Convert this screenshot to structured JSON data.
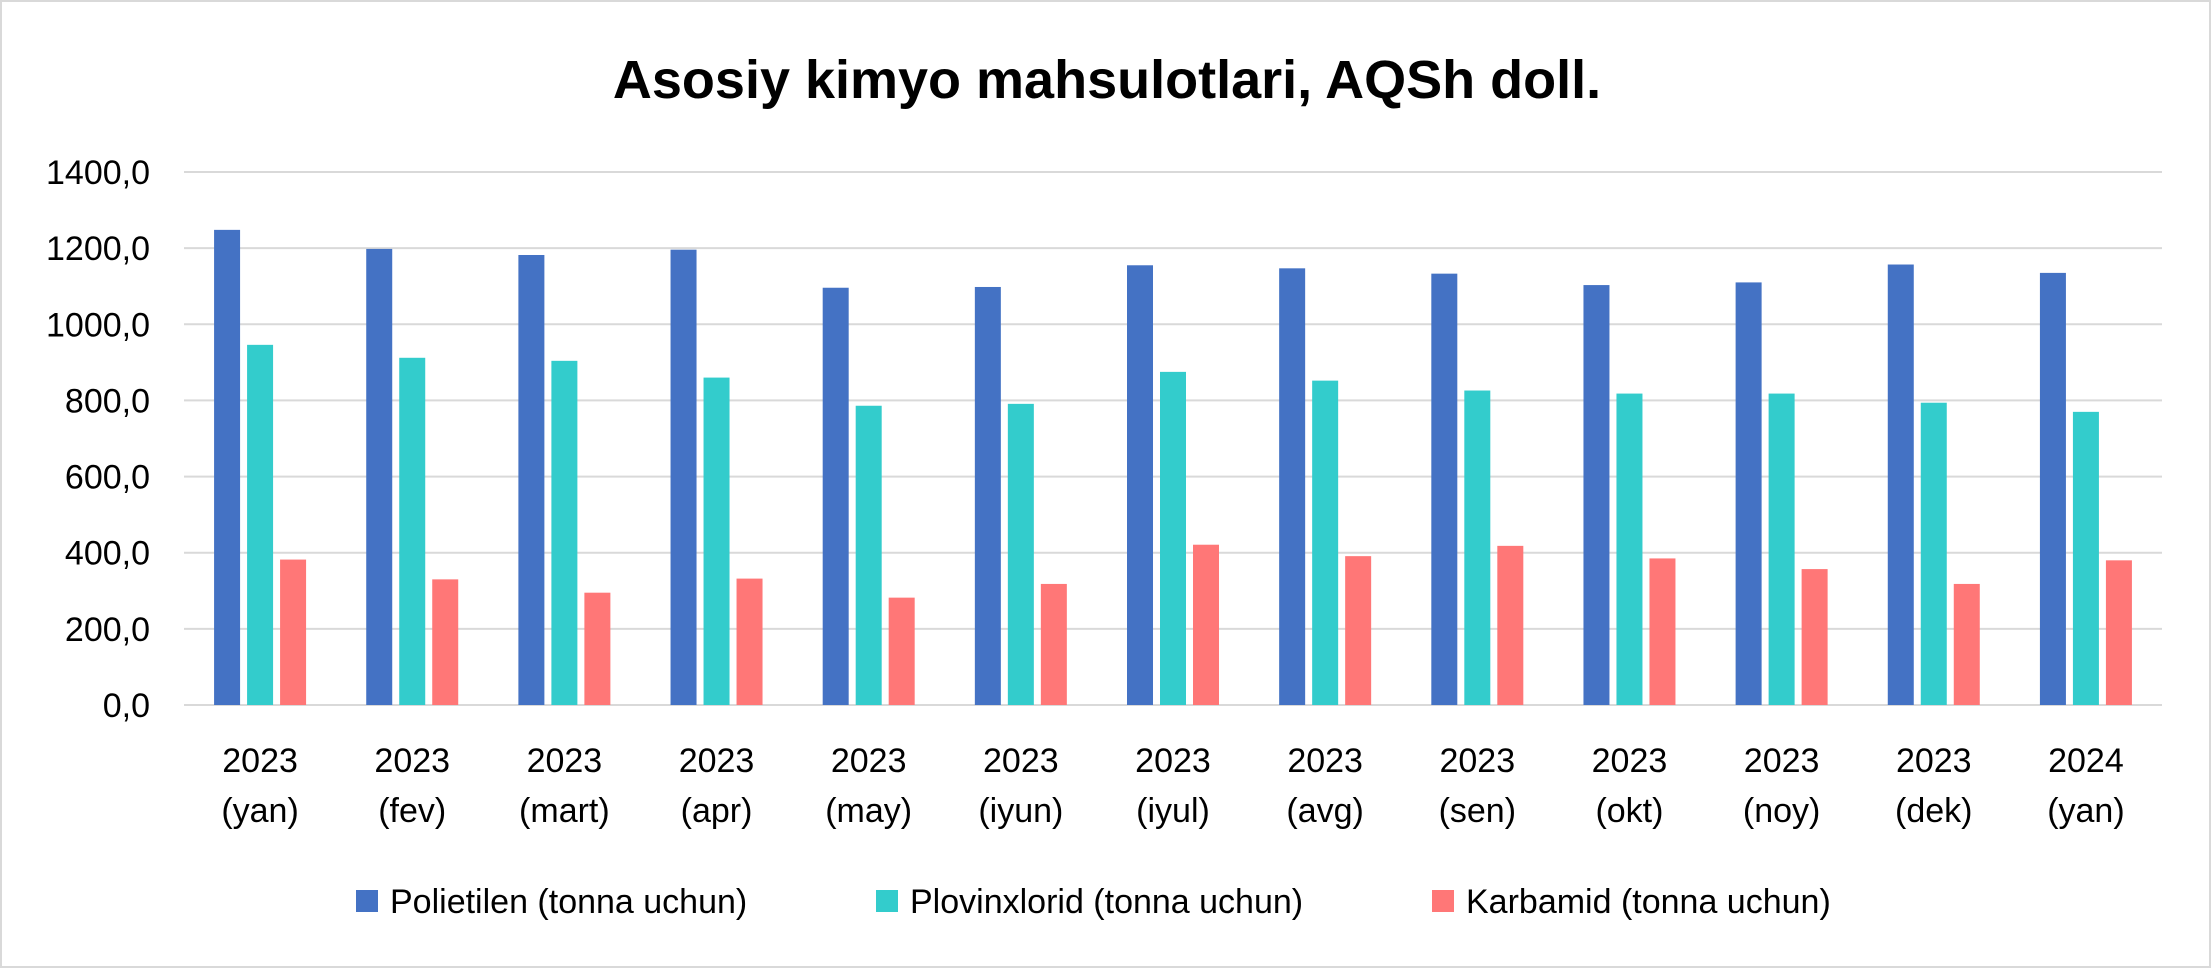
{
  "chart_data": {
    "type": "bar",
    "title": "Asosiy kimyo mahsulotlari, AQSh doll.",
    "ylim": [
      0,
      1400
    ],
    "yticks": [
      "0,0",
      "200,0",
      "400,0",
      "600,0",
      "800,0",
      "1000,0",
      "1200,0",
      "1400,0"
    ],
    "ytick_values": [
      0,
      200,
      400,
      600,
      800,
      1000,
      1200,
      1400
    ],
    "grid": true,
    "legend_position": "bottom",
    "categories": [
      [
        "2023",
        "(yan)"
      ],
      [
        "2023",
        "(fev)"
      ],
      [
        "2023",
        "(mart)"
      ],
      [
        "2023",
        "(apr)"
      ],
      [
        "2023",
        "(may)"
      ],
      [
        "2023",
        "(iyun)"
      ],
      [
        "2023",
        "(iyul)"
      ],
      [
        "2023",
        "(avg)"
      ],
      [
        "2023",
        "(sen)"
      ],
      [
        "2023",
        "(okt)"
      ],
      [
        "2023",
        "(noy)"
      ],
      [
        "2023",
        "(dek)"
      ],
      [
        "2024",
        "(yan)"
      ]
    ],
    "series": [
      {
        "name": "Polietilen (tonna uchun)",
        "color": "#4472c4",
        "values": [
          1248,
          1198,
          1182,
          1196,
          1096,
          1098,
          1155,
          1147,
          1133,
          1103,
          1110,
          1157,
          1135
        ]
      },
      {
        "name": "Plovinxlorid (tonna uchun)",
        "color": "#33cccc",
        "values": [
          946,
          912,
          904,
          860,
          786,
          791,
          875,
          852,
          826,
          818,
          818,
          794,
          770
        ]
      },
      {
        "name": "Karbamid (tonna uchun)",
        "color": "#ff7777",
        "values": [
          382,
          330,
          295,
          332,
          282,
          318,
          421,
          391,
          418,
          385,
          357,
          318,
          380
        ]
      }
    ]
  }
}
